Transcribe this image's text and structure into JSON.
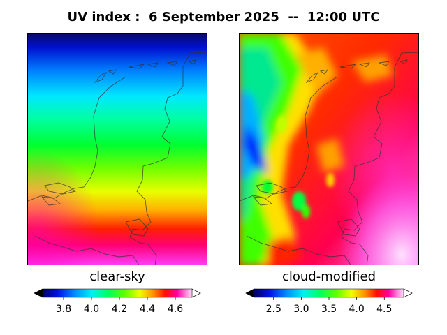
{
  "header": {
    "title": "UV index :  6 September 2025  --  12:00 UTC"
  },
  "chart_data": [
    {
      "type": "heatmap",
      "panel_label": "clear-sky",
      "colormap": "gist_ncar-like",
      "range": [
        3.65,
        4.72
      ],
      "colorbar_ticks": [
        {
          "value": 3.8,
          "label": "3.8"
        },
        {
          "value": 4.0,
          "label": "4.0"
        },
        {
          "value": 4.2,
          "label": "4.2"
        },
        {
          "value": 4.4,
          "label": "4.4"
        },
        {
          "value": 4.6,
          "label": "4.6"
        }
      ],
      "colorbar_extend": "both",
      "field_description": "smooth north-south gradient, lowest in north (~3.7), highest in south (~4.7)"
    },
    {
      "type": "heatmap",
      "panel_label": "cloud-modified",
      "colormap": "gist_ncar-like",
      "range": [
        2.15,
        4.85
      ],
      "colorbar_ticks": [
        {
          "value": 2.5,
          "label": "2.5"
        },
        {
          "value": 3.0,
          "label": "3.0"
        },
        {
          "value": 3.5,
          "label": "3.5"
        },
        {
          "value": 4.0,
          "label": "4.0"
        },
        {
          "value": 4.5,
          "label": "4.5"
        }
      ],
      "colorbar_extend": "both",
      "field_description": "low values along western coastal cloud band (~2.3-3.5), mostly ~4.0-4.2 inland, up to ~4.8 in south-east"
    }
  ]
}
